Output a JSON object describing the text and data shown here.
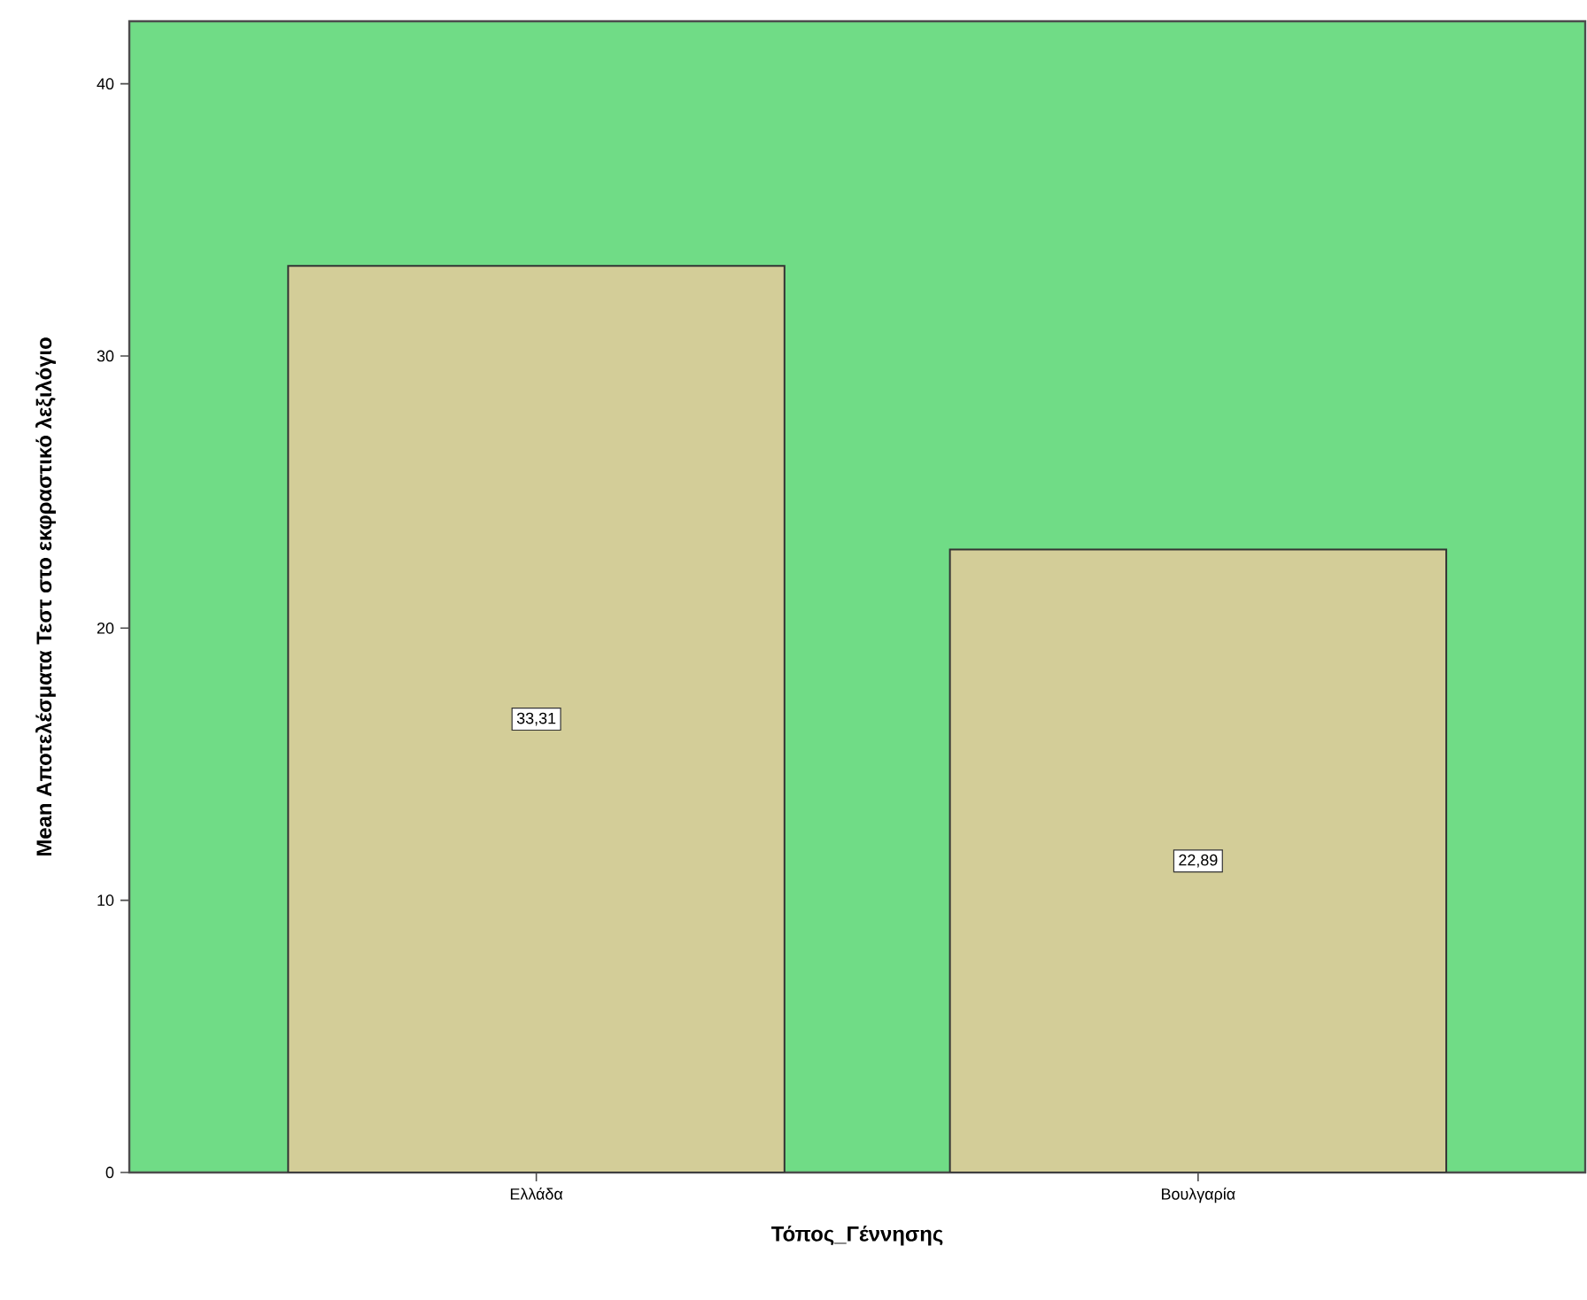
{
  "chart_data": {
    "type": "bar",
    "xlabel": "Τόπος_Γέννησης",
    "ylabel": "Mean Αποτελέσματα Τεστ στο εκφραστικό λεξιλόγιο",
    "categories": [
      "Ελλάδα",
      "Βουλγαρία"
    ],
    "values": [
      33.31,
      22.89
    ],
    "value_labels": [
      "33,31",
      "22,89"
    ],
    "color": "#d3cd98",
    "ylim": [
      0,
      42.3
    ],
    "yticks": [
      0,
      10,
      20,
      30,
      40
    ]
  }
}
